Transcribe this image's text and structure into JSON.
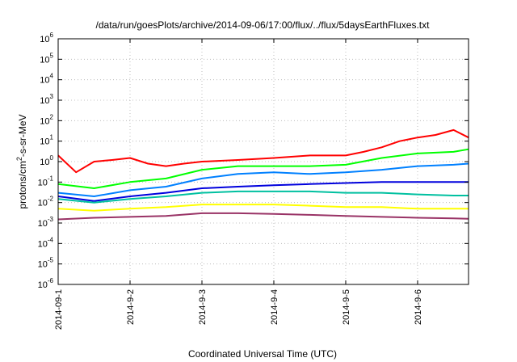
{
  "chart_data": {
    "type": "line",
    "title": "/data/run/goesPlots/archive/2014-09-06/17:00/flux/../flux/5daysEarthFluxes.txt",
    "xlabel": "Coordinated Universal Time (UTC)",
    "ylabel_parts": {
      "pre": "protons/cm",
      "sup": "2",
      "post": "-s-sr-MeV"
    },
    "y_scale": "log",
    "ylim": [
      1e-06,
      1000000.0
    ],
    "y_ticks": [
      {
        "value": 1000000.0,
        "base": "10",
        "exp": "6"
      },
      {
        "value": 100000.0,
        "base": "10",
        "exp": "5"
      },
      {
        "value": 10000.0,
        "base": "10",
        "exp": "4"
      },
      {
        "value": 1000.0,
        "base": "10",
        "exp": "3"
      },
      {
        "value": 100.0,
        "base": "10",
        "exp": "2"
      },
      {
        "value": 10.0,
        "base": "10",
        "exp": "1"
      },
      {
        "value": 1.0,
        "base": "10",
        "exp": "0"
      },
      {
        "value": 0.1,
        "base": "10",
        "exp": "-1"
      },
      {
        "value": 0.01,
        "base": "10",
        "exp": "-2"
      },
      {
        "value": 0.001,
        "base": "10",
        "exp": "-3"
      },
      {
        "value": 0.0001,
        "base": "10",
        "exp": "-4"
      },
      {
        "value": 1e-05,
        "base": "10",
        "exp": "-5"
      },
      {
        "value": 1e-06,
        "base": "10",
        "exp": "-6"
      }
    ],
    "x_ticks": [
      "2014-09-1",
      "2014-9-2",
      "2014-9-3",
      "2014-9-4",
      "2014-9-5",
      "2014-9-6"
    ],
    "xlim": [
      "2014-09-01 00:00",
      "2014-09-06 17:00"
    ],
    "grid": true,
    "legend": "none",
    "series": [
      {
        "color": "#ff0000",
        "x": [
          "2014-09-01 00:00",
          "2014-09-01 06:00",
          "2014-09-01 12:00",
          "2014-09-01 18:00",
          "2014-09-02 00:00",
          "2014-09-02 06:00",
          "2014-09-02 12:00",
          "2014-09-02 18:00",
          "2014-09-03 00:00",
          "2014-09-03 12:00",
          "2014-09-04 00:00",
          "2014-09-04 12:00",
          "2014-09-05 00:00",
          "2014-09-05 06:00",
          "2014-09-05 12:00",
          "2014-09-05 18:00",
          "2014-09-06 00:00",
          "2014-09-06 06:00",
          "2014-09-06 12:00",
          "2014-09-06 17:00"
        ],
        "values": [
          2.0,
          0.3,
          1.0,
          1.2,
          1.5,
          0.8,
          0.6,
          0.8,
          1.0,
          1.2,
          1.5,
          2.0,
          2.0,
          3.0,
          5.0,
          10,
          15,
          20,
          35,
          15
        ]
      },
      {
        "color": "#00ff00",
        "x": [
          "2014-09-01 00:00",
          "2014-09-01 12:00",
          "2014-09-02 00:00",
          "2014-09-02 12:00",
          "2014-09-03 00:00",
          "2014-09-03 12:00",
          "2014-09-04 00:00",
          "2014-09-04 12:00",
          "2014-09-05 00:00",
          "2014-09-05 12:00",
          "2014-09-06 00:00",
          "2014-09-06 12:00",
          "2014-09-06 17:00"
        ],
        "values": [
          0.08,
          0.05,
          0.1,
          0.15,
          0.4,
          0.6,
          0.6,
          0.6,
          0.7,
          1.5,
          2.5,
          3.0,
          4.0
        ]
      },
      {
        "color": "#0080ff",
        "x": [
          "2014-09-01 00:00",
          "2014-09-01 12:00",
          "2014-09-02 00:00",
          "2014-09-02 12:00",
          "2014-09-03 00:00",
          "2014-09-03 12:00",
          "2014-09-04 00:00",
          "2014-09-04 12:00",
          "2014-09-05 00:00",
          "2014-09-05 12:00",
          "2014-09-06 00:00",
          "2014-09-06 12:00",
          "2014-09-06 17:00"
        ],
        "values": [
          0.03,
          0.02,
          0.04,
          0.06,
          0.15,
          0.25,
          0.3,
          0.25,
          0.3,
          0.4,
          0.6,
          0.7,
          0.8
        ]
      },
      {
        "color": "#0000dd",
        "x": [
          "2014-09-01 00:00",
          "2014-09-01 12:00",
          "2014-09-02 00:00",
          "2014-09-02 12:00",
          "2014-09-03 00:00",
          "2014-09-03 12:00",
          "2014-09-04 00:00",
          "2014-09-04 12:00",
          "2014-09-05 00:00",
          "2014-09-05 12:00",
          "2014-09-06 00:00",
          "2014-09-06 12:00",
          "2014-09-06 17:00"
        ],
        "values": [
          0.02,
          0.012,
          0.02,
          0.03,
          0.05,
          0.06,
          0.07,
          0.08,
          0.09,
          0.1,
          0.1,
          0.1,
          0.1
        ]
      },
      {
        "color": "#00c0a0",
        "x": [
          "2014-09-01 00:00",
          "2014-09-01 12:00",
          "2014-09-02 00:00",
          "2014-09-02 12:00",
          "2014-09-03 00:00",
          "2014-09-03 12:00",
          "2014-09-04 00:00",
          "2014-09-04 12:00",
          "2014-09-05 00:00",
          "2014-09-05 12:00",
          "2014-09-06 00:00",
          "2014-09-06 12:00",
          "2014-09-06 17:00"
        ],
        "values": [
          0.015,
          0.01,
          0.015,
          0.02,
          0.03,
          0.035,
          0.035,
          0.035,
          0.03,
          0.03,
          0.025,
          0.022,
          0.022
        ]
      },
      {
        "color": "#ffff00",
        "x": [
          "2014-09-01 00:00",
          "2014-09-01 12:00",
          "2014-09-02 00:00",
          "2014-09-02 12:00",
          "2014-09-03 00:00",
          "2014-09-03 12:00",
          "2014-09-04 00:00",
          "2014-09-04 12:00",
          "2014-09-05 00:00",
          "2014-09-05 12:00",
          "2014-09-06 00:00",
          "2014-09-06 12:00",
          "2014-09-06 17:00"
        ],
        "values": [
          0.005,
          0.004,
          0.005,
          0.006,
          0.008,
          0.008,
          0.008,
          0.007,
          0.006,
          0.006,
          0.005,
          0.005,
          0.005
        ]
      },
      {
        "color": "#993366",
        "x": [
          "2014-09-01 00:00",
          "2014-09-01 12:00",
          "2014-09-02 00:00",
          "2014-09-02 12:00",
          "2014-09-03 00:00",
          "2014-09-03 12:00",
          "2014-09-04 00:00",
          "2014-09-04 12:00",
          "2014-09-05 00:00",
          "2014-09-05 12:00",
          "2014-09-06 00:00",
          "2014-09-06 12:00",
          "2014-09-06 17:00"
        ],
        "values": [
          0.0015,
          0.0018,
          0.002,
          0.0022,
          0.003,
          0.003,
          0.0028,
          0.0025,
          0.0022,
          0.002,
          0.0018,
          0.0017,
          0.0016
        ]
      }
    ]
  }
}
